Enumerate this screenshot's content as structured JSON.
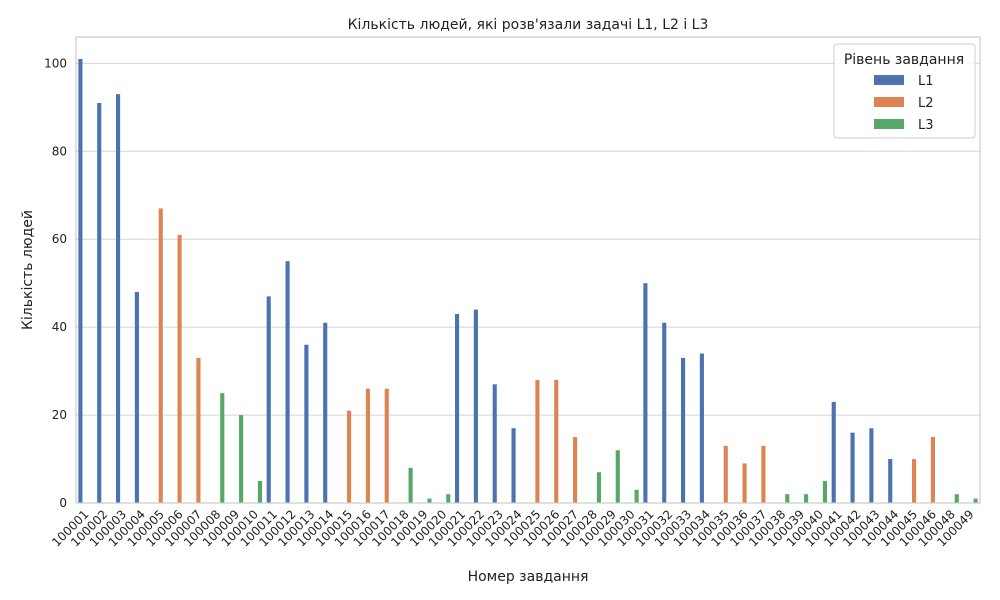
{
  "chart_data": {
    "type": "bar",
    "title": "Кількість людей, які розв'язали задачі L1, L2 і L3",
    "xlabel": "Номер завдання",
    "ylabel": "Кількість людей",
    "ylim": [
      0,
      106
    ],
    "yticks": [
      0,
      20,
      40,
      60,
      80,
      100
    ],
    "grid": "horizontal",
    "legend": {
      "title": "Рівень завдання",
      "placement": "top-right",
      "entries": [
        "L1",
        "L2",
        "L3"
      ]
    },
    "colors": {
      "L1": "#4c72b0",
      "L2": "#dd8452",
      "L3": "#55a868"
    },
    "categories": [
      "100001",
      "100002",
      "100003",
      "100004",
      "100005",
      "100006",
      "100007",
      "100008",
      "100009",
      "100010",
      "100011",
      "100012",
      "100013",
      "100014",
      "100015",
      "100016",
      "100017",
      "100018",
      "100019",
      "100020",
      "100021",
      "100022",
      "100023",
      "100024",
      "100025",
      "100026",
      "100027",
      "100028",
      "100029",
      "100030",
      "100031",
      "100032",
      "100033",
      "100034",
      "100035",
      "100036",
      "100037",
      "100038",
      "100039",
      "100040",
      "100041",
      "100042",
      "100043",
      "100044",
      "100045",
      "100046",
      "100048",
      "100049"
    ],
    "series": [
      {
        "name": "L1",
        "values": [
          101,
          91,
          93,
          48,
          null,
          null,
          null,
          null,
          null,
          null,
          47,
          55,
          36,
          41,
          null,
          null,
          null,
          null,
          null,
          null,
          43,
          44,
          27,
          17,
          null,
          null,
          null,
          null,
          null,
          null,
          50,
          41,
          33,
          34,
          null,
          null,
          null,
          null,
          null,
          null,
          23,
          16,
          17,
          10,
          null,
          null,
          null,
          null
        ]
      },
      {
        "name": "L2",
        "values": [
          null,
          null,
          null,
          null,
          67,
          61,
          33,
          null,
          null,
          null,
          null,
          null,
          null,
          null,
          21,
          26,
          26,
          null,
          null,
          null,
          null,
          null,
          null,
          null,
          28,
          28,
          15,
          null,
          null,
          null,
          null,
          null,
          null,
          null,
          13,
          9,
          13,
          null,
          null,
          null,
          null,
          null,
          null,
          null,
          10,
          15,
          null,
          null
        ]
      },
      {
        "name": "L3",
        "values": [
          null,
          null,
          null,
          null,
          null,
          null,
          null,
          25,
          20,
          5,
          null,
          null,
          null,
          null,
          null,
          null,
          null,
          8,
          1,
          2,
          null,
          null,
          null,
          null,
          null,
          null,
          null,
          7,
          12,
          3,
          null,
          null,
          null,
          null,
          null,
          null,
          null,
          2,
          2,
          5,
          null,
          null,
          null,
          null,
          null,
          null,
          2,
          1
        ]
      }
    ]
  }
}
